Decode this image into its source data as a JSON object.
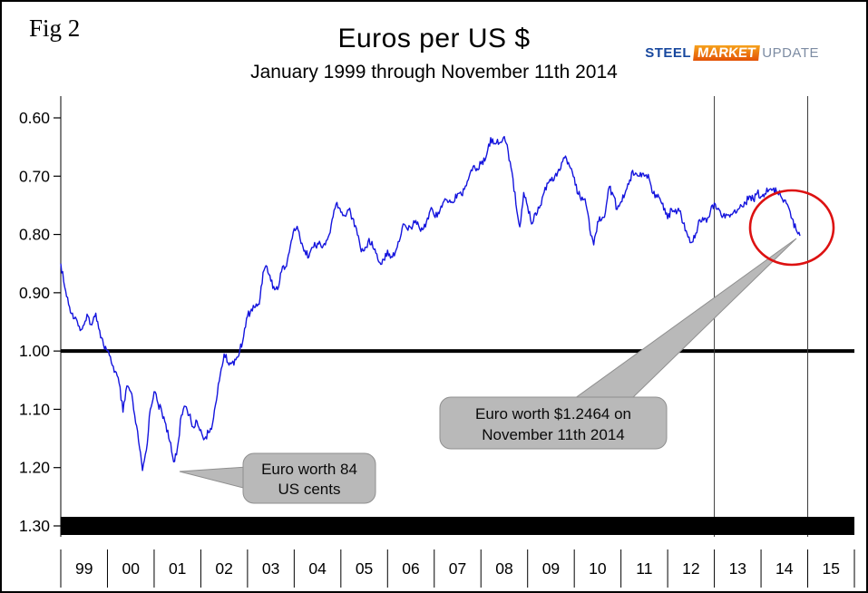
{
  "fig_label": "Fig 2",
  "title": "Euros per US $",
  "subtitle": "January 1999 through November 11th 2014",
  "logo": {
    "steel": "STEEL",
    "market": "MARKET",
    "update": "UPDATE"
  },
  "chart_data": {
    "type": "line",
    "title": "Euros per US $",
    "subtitle": "January 1999 through November 11th 2014",
    "x_start_year": 1999,
    "x_axis_years_span": 17,
    "x_frequency": "monthly",
    "xlabels": [
      "99",
      "00",
      "01",
      "02",
      "03",
      "04",
      "05",
      "06",
      "07",
      "08",
      "09",
      "10",
      "11",
      "12",
      "13",
      "14",
      "15"
    ],
    "yticks": [
      "0.60",
      "0.70",
      "0.80",
      "0.90",
      "1.00",
      "1.10",
      "1.20",
      "1.30"
    ],
    "ylim": [
      0.6,
      1.3
    ],
    "y_axis_inverted_display": true,
    "grid": "off",
    "reference_line_y": 1.0,
    "vline_years": [
      2013,
      2015
    ],
    "noise_amplitude": 0.007,
    "end_value": 0.8023,
    "series": [
      {
        "name": "Euros per US $",
        "color": "#1414dd",
        "values": [
          0.85,
          0.89,
          0.92,
          0.935,
          0.945,
          0.965,
          0.955,
          0.94,
          0.955,
          0.935,
          0.965,
          0.99,
          1.0,
          1.02,
          1.035,
          1.055,
          1.105,
          1.06,
          1.07,
          1.11,
          1.155,
          1.205,
          1.17,
          1.1,
          1.07,
          1.09,
          1.105,
          1.125,
          1.155,
          1.19,
          1.165,
          1.11,
          1.095,
          1.11,
          1.13,
          1.12,
          1.135,
          1.15,
          1.14,
          1.125,
          1.085,
          1.04,
          1.005,
          1.02,
          1.02,
          1.015,
          1.0,
          0.975,
          0.94,
          0.928,
          0.925,
          0.92,
          0.865,
          0.855,
          0.88,
          0.895,
          0.89,
          0.855,
          0.855,
          0.82,
          0.79,
          0.792,
          0.815,
          0.835,
          0.832,
          0.822,
          0.815,
          0.822,
          0.818,
          0.8,
          0.77,
          0.745,
          0.762,
          0.768,
          0.758,
          0.772,
          0.79,
          0.822,
          0.828,
          0.812,
          0.812,
          0.832,
          0.848,
          0.843,
          0.827,
          0.838,
          0.83,
          0.812,
          0.782,
          0.79,
          0.788,
          0.78,
          0.785,
          0.792,
          0.778,
          0.758,
          0.768,
          0.762,
          0.753,
          0.74,
          0.741,
          0.745,
          0.73,
          0.732,
          0.717,
          0.7,
          0.683,
          0.687,
          0.679,
          0.674,
          0.645,
          0.636,
          0.643,
          0.642,
          0.632,
          0.658,
          0.693,
          0.748,
          0.787,
          0.728,
          0.752,
          0.782,
          0.763,
          0.755,
          0.732,
          0.712,
          0.708,
          0.7,
          0.688,
          0.675,
          0.67,
          0.686,
          0.702,
          0.731,
          0.736,
          0.748,
          0.792,
          0.818,
          0.778,
          0.775,
          0.762,
          0.718,
          0.732,
          0.757,
          0.744,
          0.731,
          0.714,
          0.69,
          0.696,
          0.694,
          0.7,
          0.697,
          0.728,
          0.732,
          0.738,
          0.758,
          0.773,
          0.756,
          0.757,
          0.76,
          0.781,
          0.799,
          0.814,
          0.806,
          0.776,
          0.771,
          0.779,
          0.76,
          0.746,
          0.755,
          0.771,
          0.765,
          0.77,
          0.761,
          0.757,
          0.751,
          0.746,
          0.734,
          0.74,
          0.729,
          0.735,
          0.73,
          0.724,
          0.723,
          0.727,
          0.733,
          0.741,
          0.752,
          0.773,
          0.792,
          0.8023
        ]
      }
    ],
    "annotations": [
      {
        "line1": "Euro worth 84",
        "line2": "US cents",
        "points_to_year": 2001.5,
        "points_to_value": 1.2
      },
      {
        "line1": "Euro worth $1.2464 on",
        "line2": "November 11th 2014",
        "points_to_year": 2014.87,
        "points_to_value": 0.8023
      }
    ],
    "highlight_ellipse": {
      "color": "#dd1111"
    }
  }
}
